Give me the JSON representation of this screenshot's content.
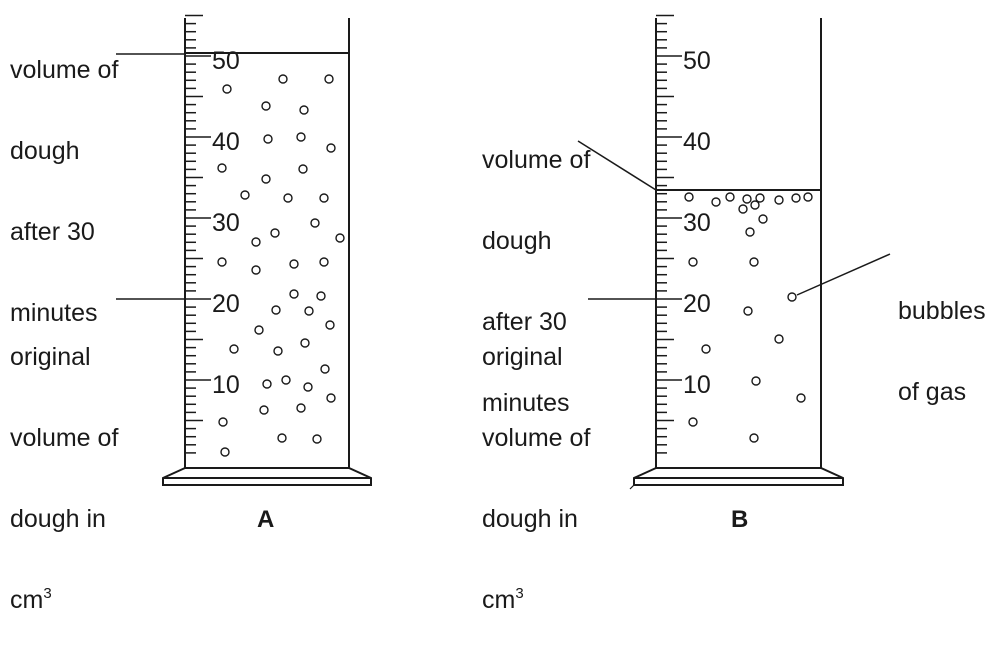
{
  "cylinder_a": {
    "caption": "A",
    "scale_labels": [
      "50",
      "40",
      "30",
      "20",
      "10"
    ],
    "after_label": [
      "volume of",
      "dough",
      "after 30",
      "minutes"
    ],
    "original_label": [
      "original",
      "volume of",
      "dough in",
      "cm"
    ],
    "unit_superscript": "3",
    "dough_level_cm3": 51
  },
  "cylinder_b": {
    "caption": "B",
    "scale_labels": [
      "50",
      "40",
      "30",
      "20",
      "10"
    ],
    "after_label": [
      "volume of",
      "dough",
      "after 30",
      "minutes"
    ],
    "original_label": [
      "original",
      "volume of",
      "dough in",
      "cm"
    ],
    "unit_superscript": "3",
    "dough_level_cm3": 34,
    "bubbles_label": [
      "bubbles",
      "of gas"
    ]
  },
  "colors": {
    "ink": "#1a1a1a",
    "background": "#ffffff"
  }
}
